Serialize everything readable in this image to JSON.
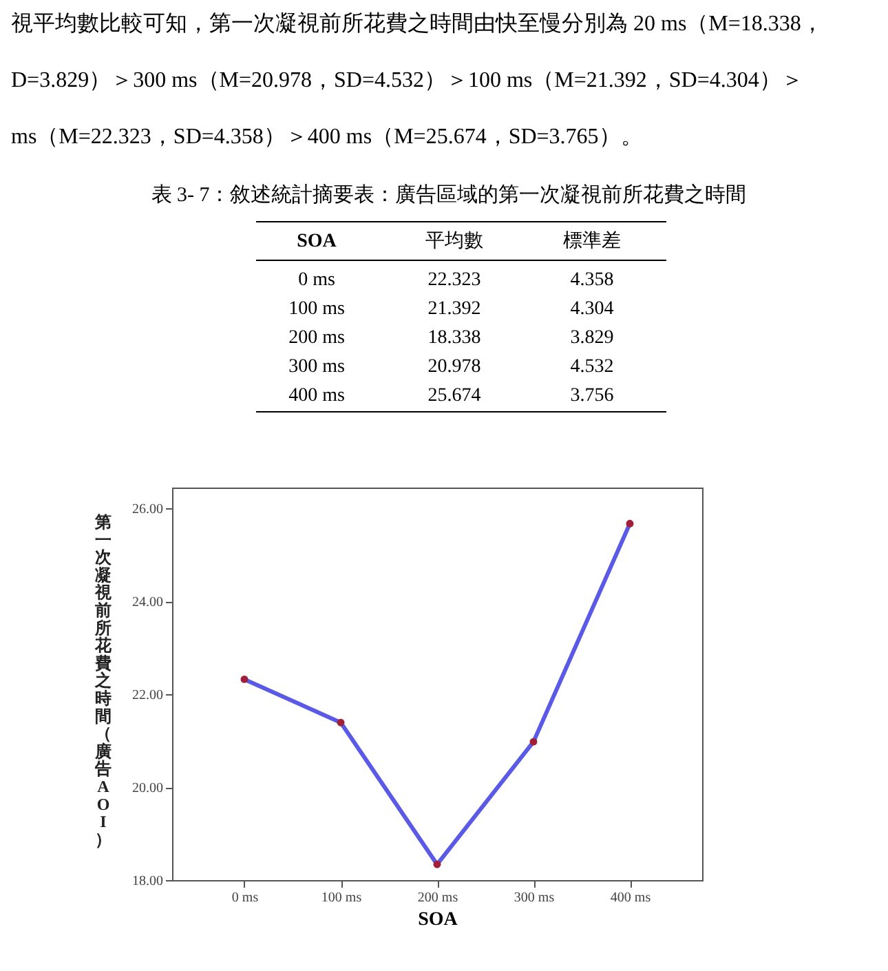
{
  "chart_data": {
    "type": "line",
    "title": "表 3- 7：敘述統計摘要表：廣告區域的第一次凝視前所花費之時間",
    "annotations": [
      "視平均數比較可知，第一次凝視前所花費之時間由快至慢分別為 20 ms（M=18.338，",
      "D=3.829）＞300 ms（M=20.978，SD=4.532）＞100 ms（M=21.392，SD=4.304）＞",
      "ms（M=22.323，SD=4.358）＞400 ms（M=25.674，SD=3.765）。",
      "SOA",
      "平均數",
      "標準差",
      "22.323",
      "21.392",
      "18.338",
      "20.978",
      "25.674",
      "4.358",
      "4.304",
      "3.829",
      "4.532",
      "3.756"
    ],
    "categories": [
      "0 ms",
      "100 ms",
      "200 ms",
      "300 ms",
      "400 ms"
    ],
    "series": [
      {
        "color": "#5a5ae6",
        "values": [
          22.323,
          21.392,
          18.338,
          20.978,
          25.674
        ]
      }
    ],
    "ylim": [
      18,
      26.45
    ],
    "yticks": [
      {
        "value": 18,
        "label": "18.00"
      },
      {
        "value": 20,
        "label": "20.00"
      },
      {
        "value": 22,
        "label": "22.00"
      },
      {
        "value": 24,
        "label": "24.00"
      },
      {
        "value": 26,
        "label": "26.00"
      }
    ],
    "xlabel": "SOA",
    "ylabel": "第一次凝視前所花費之時間（廣告AOI）",
    "marker": "circle",
    "line_style": "solid",
    "grid": false,
    "legend": false
  }
}
